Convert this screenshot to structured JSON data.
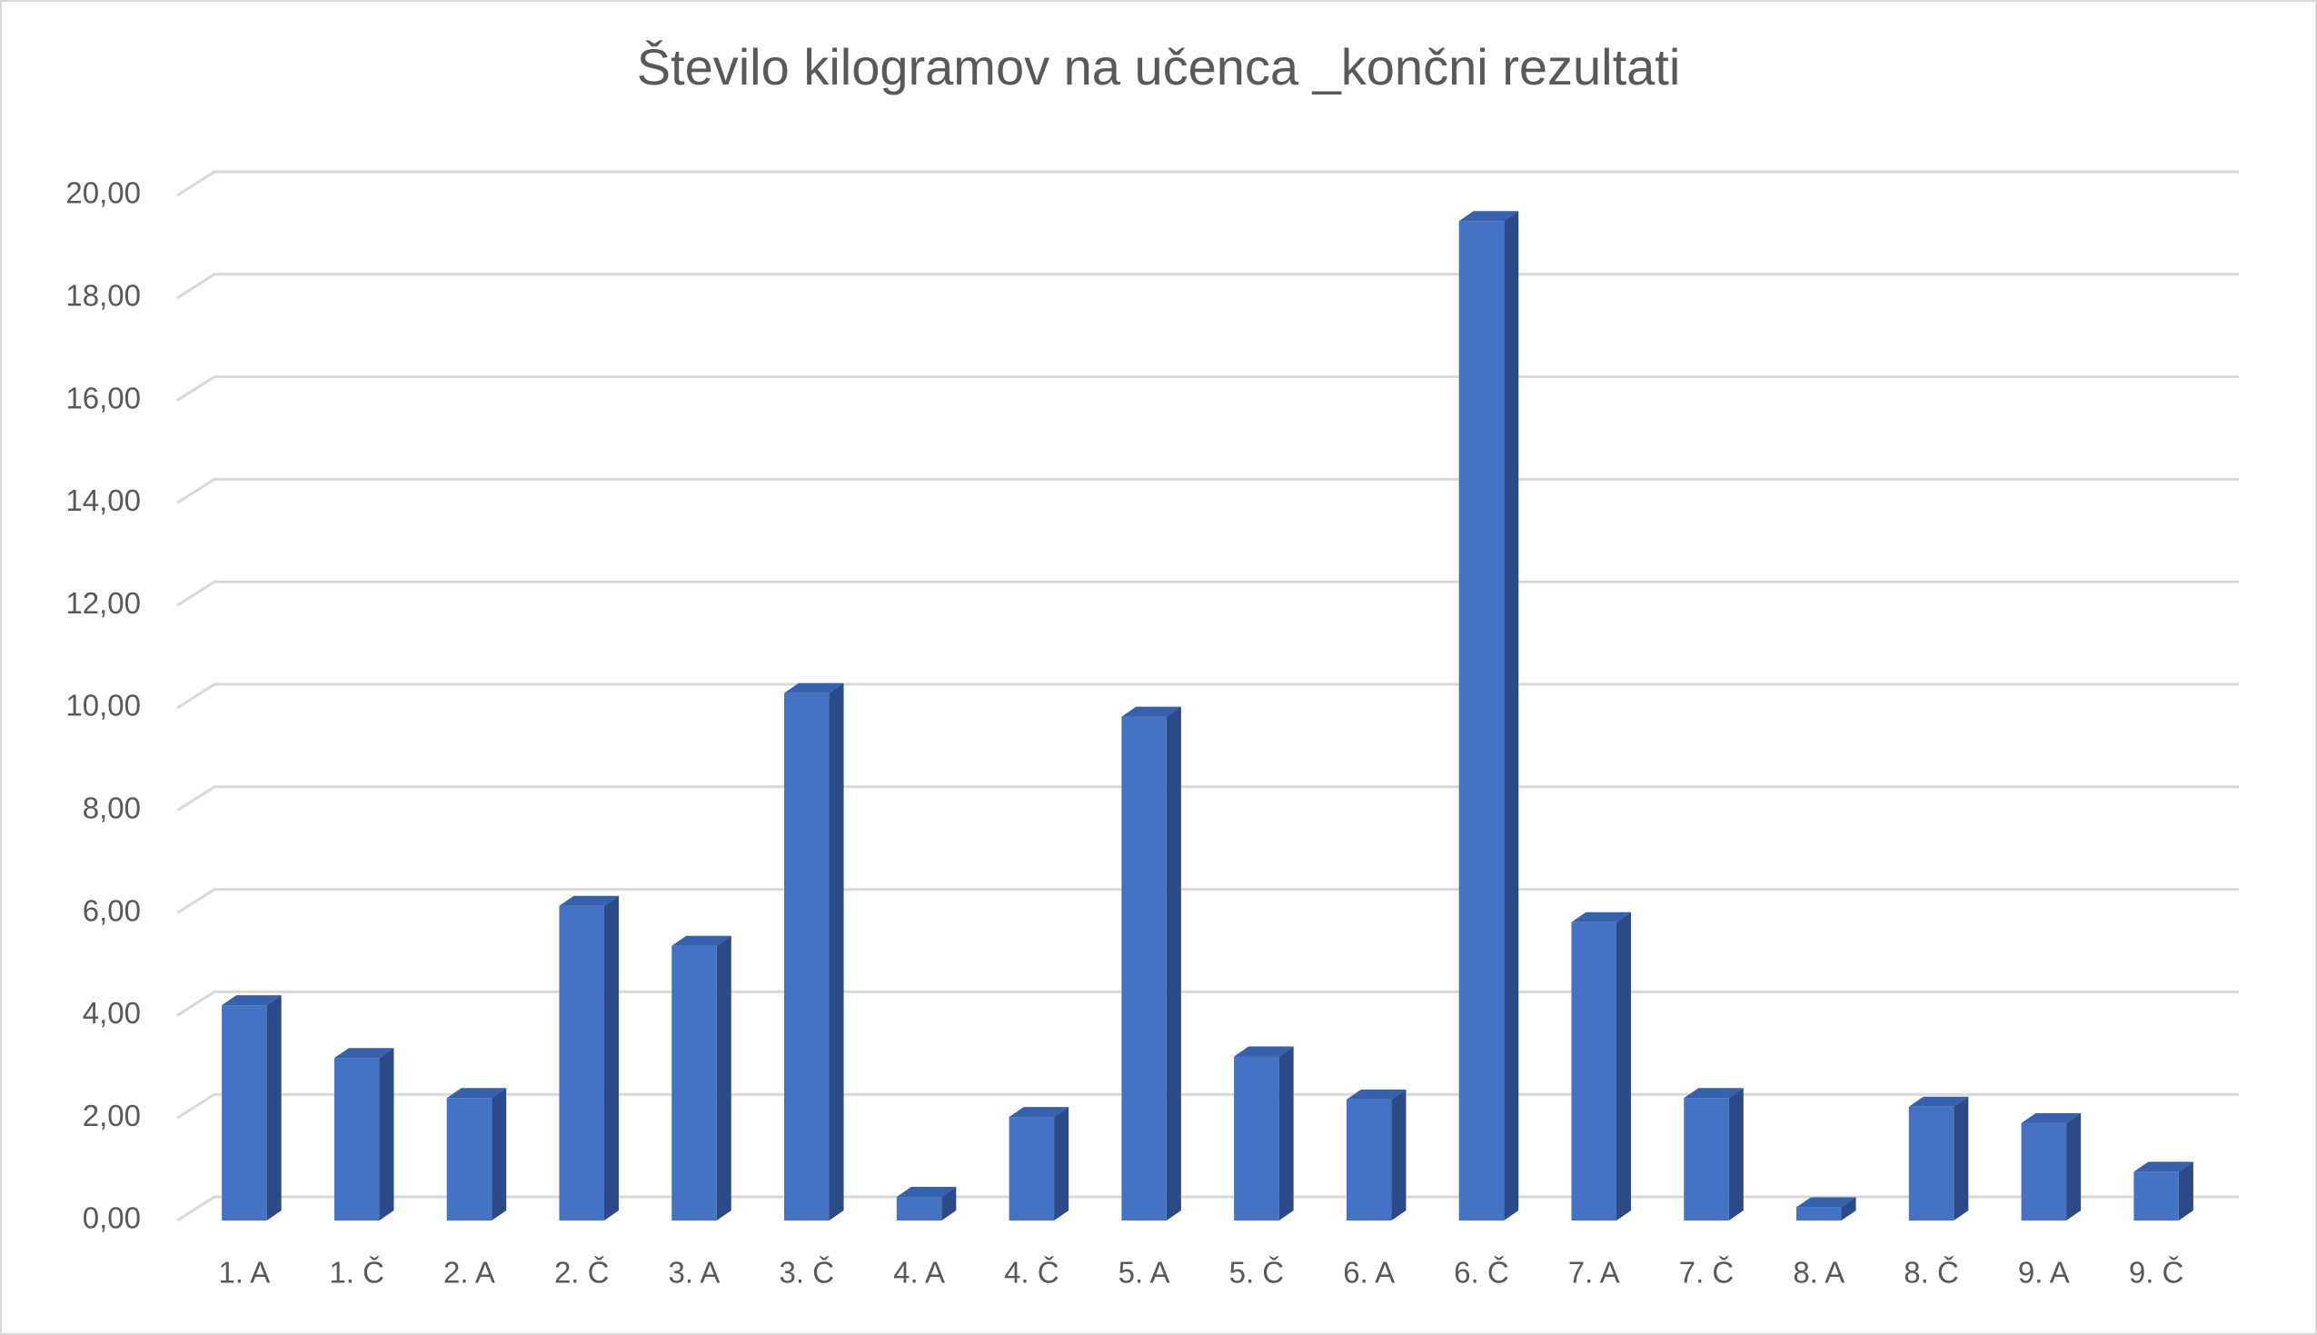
{
  "chart_data": {
    "type": "bar3d",
    "title": "Število kilogramov na učenca _končni rezultati",
    "categories": [
      "1. A",
      "1. Č",
      "2. A",
      "2. Č",
      "3. A",
      "3. Č",
      "4. A",
      "4. Č",
      "5. A",
      "5. Č",
      "6. A",
      "6. Č",
      "7. A",
      "7. Č",
      "8. A",
      "8. Č",
      "9. A",
      "9. Č"
    ],
    "values": [
      4.2,
      3.17,
      2.39,
      6.14,
      5.36,
      10.29,
      0.46,
      2.02,
      9.83,
      3.2,
      2.36,
      19.5,
      5.82,
      2.39,
      0.26,
      2.22,
      1.9,
      0.95
    ],
    "color": "#4472c4",
    "ylim": [
      0,
      20
    ],
    "yticks": [
      {
        "value": 0,
        "label": "0,00"
      },
      {
        "value": 2,
        "label": "2,00"
      },
      {
        "value": 4,
        "label": "4,00"
      },
      {
        "value": 6,
        "label": "6,00"
      },
      {
        "value": 8,
        "label": "8,00"
      },
      {
        "value": 10,
        "label": "10,00"
      },
      {
        "value": 12,
        "label": "12,00"
      },
      {
        "value": 14,
        "label": "14,00"
      },
      {
        "value": 16,
        "label": "16,00"
      },
      {
        "value": 18,
        "label": "18,00"
      },
      {
        "value": 20,
        "label": "20,00"
      }
    ],
    "grid": true
  }
}
